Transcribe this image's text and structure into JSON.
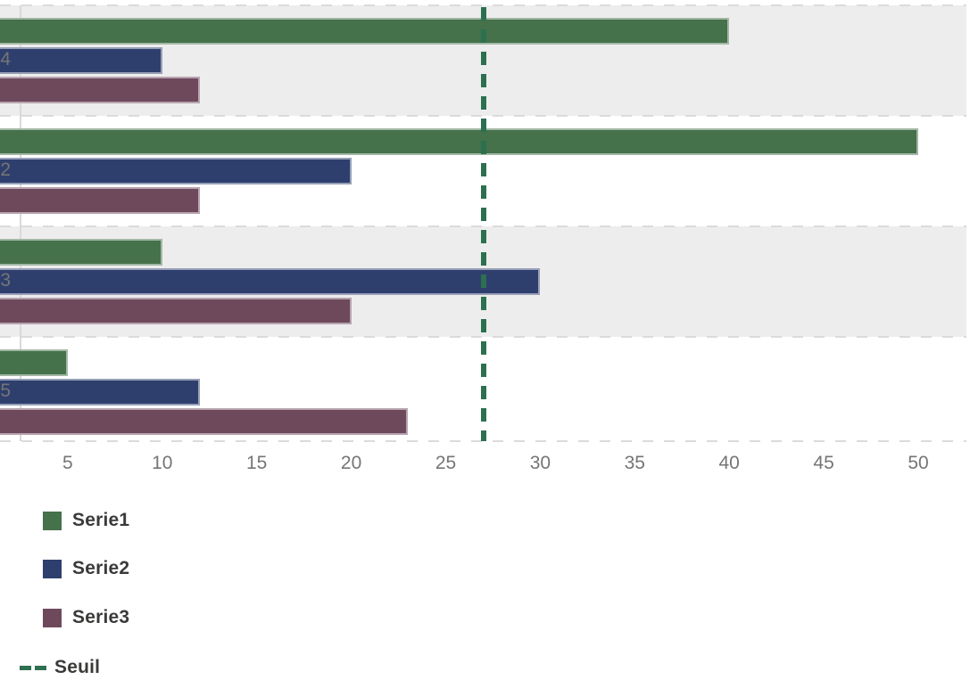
{
  "chart_data": {
    "type": "bar",
    "orientation": "horizontal",
    "title": "",
    "xlabel": "",
    "ylabel": "",
    "categories": [
      "4",
      "2",
      "3",
      "5"
    ],
    "categories_note": "category labels are cropped at the left edge of the screenshot; only the final character of each is visible",
    "series": [
      {
        "name": "Serie1",
        "color": "#45714B",
        "values": [
          40,
          50,
          10,
          5
        ]
      },
      {
        "name": "Serie2",
        "color": "#2E3F6E",
        "values": [
          10,
          20,
          30,
          12
        ]
      },
      {
        "name": "Serie3",
        "color": "#6E495C",
        "values": [
          12,
          12,
          20,
          23
        ]
      }
    ],
    "threshold": {
      "name": "Seuil",
      "value": 27,
      "color": "#2D7050",
      "style": "dashed-vertical"
    },
    "x_ticks": [
      5,
      10,
      15,
      20,
      25,
      30,
      35,
      40,
      45,
      50
    ],
    "xlim": [
      0,
      52.5
    ],
    "grid": "horizontal-dashed-between-categories",
    "row_banding": {
      "enabled": true,
      "color": "#EDEDED",
      "banded_rows": [
        0,
        2
      ]
    },
    "legend_position": "bottom-left"
  },
  "colors": {
    "background": "#FFFFFF",
    "band": "#EDEDED",
    "gridline": "#DBDBDB",
    "axis_line": "#D9D9D9",
    "tick_text": "#757575",
    "legend_text": "#3A3A39",
    "serie1": "#45714B",
    "serie2": "#2E3F6E",
    "serie3": "#6E495C",
    "seuil": "#2D7050"
  }
}
